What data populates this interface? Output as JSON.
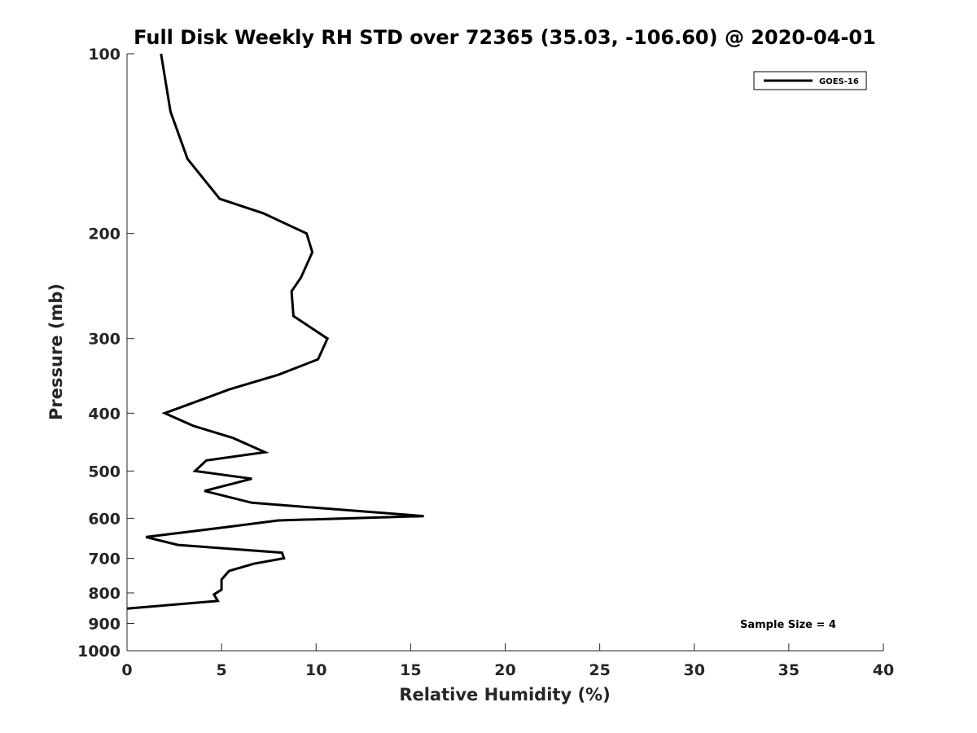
{
  "chart_data": {
    "type": "line",
    "title": "Full Disk Weekly RH STD over 72365 (35.03, -106.60) @ 2020-04-01",
    "xlabel": "Relative Humidity (%)",
    "ylabel": "Pressure (mb)",
    "xlim": [
      0,
      40
    ],
    "ylim": [
      1000,
      100
    ],
    "y_scale": "log",
    "y_reversed": true,
    "x_ticks": [
      0,
      5,
      10,
      15,
      20,
      25,
      30,
      35,
      40
    ],
    "y_ticks": [
      100,
      200,
      300,
      400,
      500,
      600,
      700,
      800,
      900,
      1000
    ],
    "grid": false,
    "legend_position": "top-right",
    "annotation": "Sample Size = 4",
    "series": [
      {
        "name": "GOES-16",
        "color": "#000000",
        "points": [
          {
            "x": 1.8,
            "y": 100
          },
          {
            "x": 2.3,
            "y": 125
          },
          {
            "x": 3.2,
            "y": 150
          },
          {
            "x": 4.9,
            "y": 175
          },
          {
            "x": 7.2,
            "y": 185
          },
          {
            "x": 9.5,
            "y": 200
          },
          {
            "x": 9.8,
            "y": 215
          },
          {
            "x": 9.2,
            "y": 237
          },
          {
            "x": 8.7,
            "y": 250
          },
          {
            "x": 8.8,
            "y": 275
          },
          {
            "x": 10.6,
            "y": 300
          },
          {
            "x": 10.1,
            "y": 325
          },
          {
            "x": 8.0,
            "y": 345
          },
          {
            "x": 5.4,
            "y": 365
          },
          {
            "x": 4.4,
            "y": 375
          },
          {
            "x": 2.0,
            "y": 400
          },
          {
            "x": 3.5,
            "y": 420
          },
          {
            "x": 5.6,
            "y": 440
          },
          {
            "x": 7.3,
            "y": 465
          },
          {
            "x": 4.2,
            "y": 480
          },
          {
            "x": 3.6,
            "y": 500
          },
          {
            "x": 6.6,
            "y": 515
          },
          {
            "x": 4.1,
            "y": 540
          },
          {
            "x": 6.6,
            "y": 565
          },
          {
            "x": 15.7,
            "y": 595
          },
          {
            "x": 8.0,
            "y": 605
          },
          {
            "x": 5.4,
            "y": 620
          },
          {
            "x": 1.0,
            "y": 645
          },
          {
            "x": 2.7,
            "y": 665
          },
          {
            "x": 8.2,
            "y": 685
          },
          {
            "x": 8.3,
            "y": 700
          },
          {
            "x": 6.7,
            "y": 715
          },
          {
            "x": 5.4,
            "y": 735
          },
          {
            "x": 5.0,
            "y": 760
          },
          {
            "x": 5.0,
            "y": 790
          },
          {
            "x": 4.6,
            "y": 805
          },
          {
            "x": 4.8,
            "y": 825
          },
          {
            "x": 0.0,
            "y": 850
          }
        ]
      }
    ]
  }
}
